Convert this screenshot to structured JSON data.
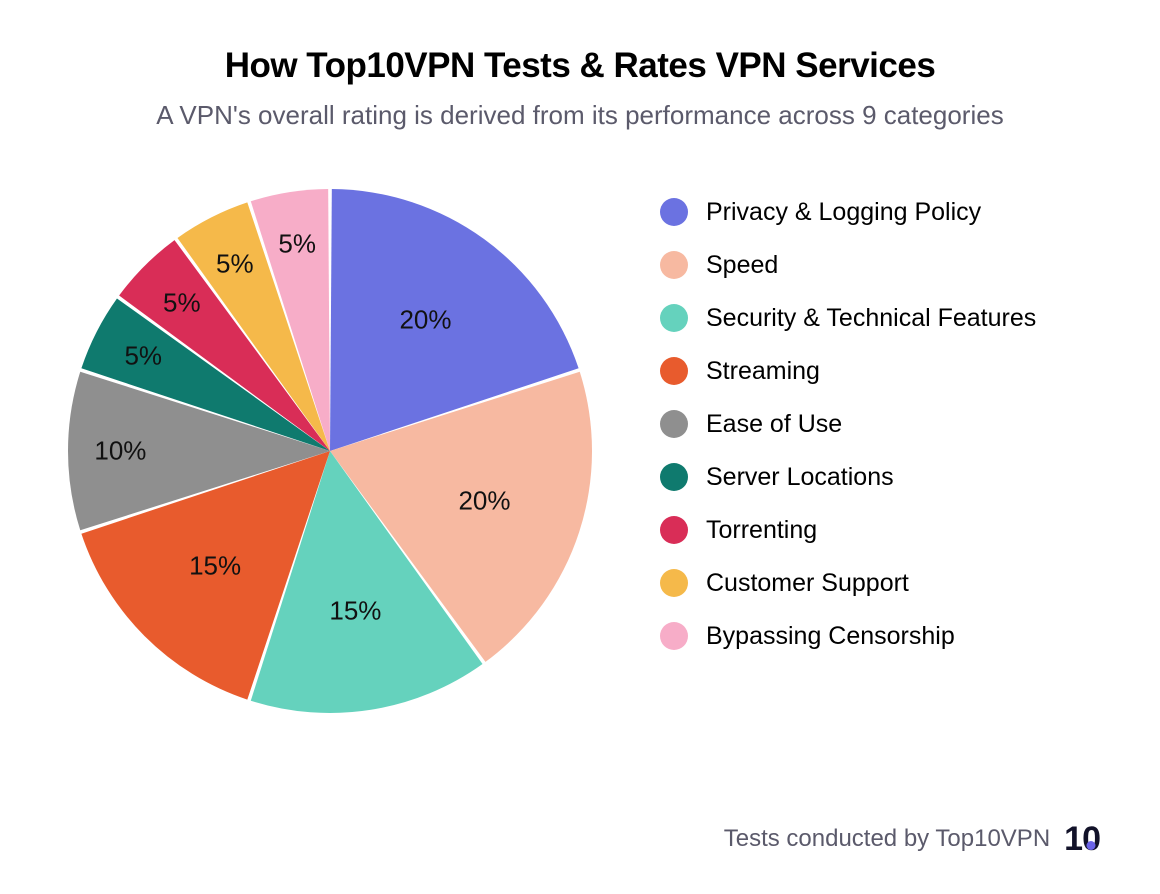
{
  "title": "How Top10VPN Tests & Rates VPN Services",
  "subtitle": "A VPN's overall rating is derived from its performance across 9 categories",
  "chart": {
    "type": "pie",
    "radius": 262,
    "start_angle_deg": -90,
    "gap_deg": 0.8,
    "background_color": "#ffffff",
    "label_fontsize": 26,
    "label_color": "#111111",
    "slices": [
      {
        "label": "Privacy & Logging Policy",
        "value": 20,
        "color": "#6b72e1",
        "pct_label": "20%"
      },
      {
        "label": "Speed",
        "value": 20,
        "color": "#f7b9a1",
        "pct_label": "20%"
      },
      {
        "label": "Security & Technical Features",
        "value": 15,
        "color": "#65d2bd",
        "pct_label": "15%"
      },
      {
        "label": "Streaming",
        "value": 15,
        "color": "#e85b2d",
        "pct_label": "15%"
      },
      {
        "label": "Ease of Use",
        "value": 10,
        "color": "#8f8f8f",
        "pct_label": "10%"
      },
      {
        "label": "Server Locations",
        "value": 5,
        "color": "#0f7a6e",
        "pct_label": "5%"
      },
      {
        "label": "Torrenting",
        "value": 5,
        "color": "#d92d57",
        "pct_label": "5%"
      },
      {
        "label": "Customer Support",
        "value": 5,
        "color": "#f5b94a",
        "pct_label": "5%"
      },
      {
        "label": "Bypassing Censorship",
        "value": 5,
        "color": "#f7adc8",
        "pct_label": "5%"
      }
    ]
  },
  "legend": {
    "swatch_size": 28,
    "label_fontsize": 25,
    "label_color": "#000000"
  },
  "footer": {
    "text": "Tests conducted by Top10VPN",
    "text_color": "#5b5a6b",
    "logo_text_1": "1",
    "logo_text_0": "0",
    "logo_color": "#121229",
    "logo_dot_color": "#6b63e8"
  }
}
